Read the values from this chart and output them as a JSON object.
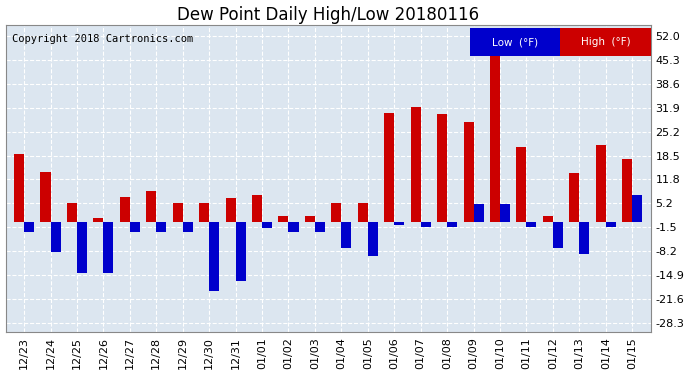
{
  "title": "Dew Point Daily High/Low 20180116",
  "copyright": "Copyright 2018 Cartronics.com",
  "dates": [
    "12/23",
    "12/24",
    "12/25",
    "12/26",
    "12/27",
    "12/28",
    "12/29",
    "12/30",
    "12/31",
    "01/01",
    "01/02",
    "01/03",
    "01/04",
    "01/05",
    "01/06",
    "01/07",
    "01/08",
    "01/09",
    "01/10",
    "01/11",
    "01/12",
    "01/13",
    "01/14",
    "01/15"
  ],
  "high_values": [
    19.0,
    14.0,
    5.2,
    1.0,
    7.0,
    8.5,
    5.2,
    5.2,
    6.5,
    7.5,
    1.5,
    1.5,
    5.2,
    5.2,
    30.5,
    32.0,
    30.0,
    28.0,
    53.0,
    21.0,
    1.5,
    13.5,
    21.5,
    17.5
  ],
  "low_values": [
    -3.0,
    -8.5,
    -14.5,
    -14.5,
    -3.0,
    -3.0,
    -3.0,
    -19.5,
    -16.5,
    -1.8,
    -3.0,
    -3.0,
    -7.5,
    -9.5,
    -1.0,
    -1.5,
    -1.5,
    5.0,
    5.0,
    -1.5,
    -7.5,
    -9.0,
    -1.5,
    7.5
  ],
  "high_color": "#cc0000",
  "low_color": "#0000cc",
  "bg_color": "#ffffff",
  "plot_bg_color": "#dce6f0",
  "grid_color": "#ffffff",
  "yticks": [
    52.0,
    45.3,
    38.6,
    31.9,
    25.2,
    18.5,
    11.8,
    5.2,
    -1.5,
    -8.2,
    -14.9,
    -21.6,
    -28.3
  ],
  "ylim": [
    -31,
    55
  ],
  "bar_width": 0.38,
  "title_fontsize": 12,
  "copyright_fontsize": 7.5,
  "tick_fontsize": 8
}
